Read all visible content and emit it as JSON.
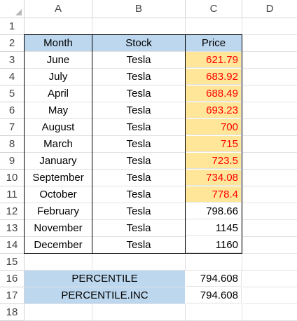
{
  "columns": [
    "A",
    "B",
    "C",
    "D"
  ],
  "rows": [
    "1",
    "2",
    "3",
    "4",
    "5",
    "6",
    "7",
    "8",
    "9",
    "10",
    "11",
    "12",
    "13",
    "14",
    "15",
    "16",
    "17",
    "18"
  ],
  "table": {
    "headers": {
      "month": "Month",
      "stock": "Stock",
      "price": "Price"
    },
    "data": [
      {
        "month": "June",
        "stock": "Tesla",
        "price": "621.79"
      },
      {
        "month": "July",
        "stock": "Tesla",
        "price": "683.92"
      },
      {
        "month": "April",
        "stock": "Tesla",
        "price": "688.49"
      },
      {
        "month": "May",
        "stock": "Tesla",
        "price": "693.23"
      },
      {
        "month": "August",
        "stock": "Tesla",
        "price": "700"
      },
      {
        "month": "March",
        "stock": "Tesla",
        "price": "715"
      },
      {
        "month": "January",
        "stock": "Tesla",
        "price": "723.5"
      },
      {
        "month": "September",
        "stock": "Tesla",
        "price": "734.08"
      },
      {
        "month": "October",
        "stock": "Tesla",
        "price": "778.4"
      },
      {
        "month": "February",
        "stock": "Tesla",
        "price": "798.66"
      },
      {
        "month": "November",
        "stock": "Tesla",
        "price": "1145"
      },
      {
        "month": "December",
        "stock": "Tesla",
        "price": "1160"
      }
    ]
  },
  "results": [
    {
      "label": "PERCENTILE",
      "value": "794.608"
    },
    {
      "label": "PERCENTILE.INC",
      "value": "794.608"
    }
  ],
  "colors": {
    "header_fill": "#bdd7ee",
    "highlight_fill": "#ffe699",
    "highlight_text": "#ff0000"
  }
}
